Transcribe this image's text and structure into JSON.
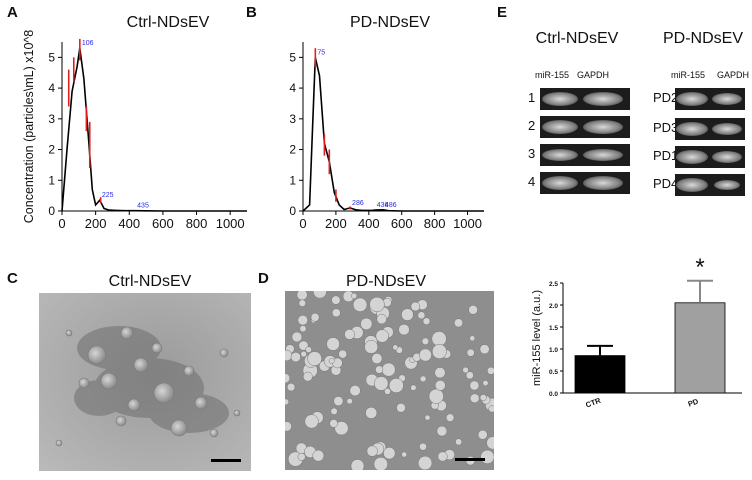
{
  "panels": {
    "A": {
      "letter": "A",
      "title": "Ctrl-NDsEV"
    },
    "B": {
      "letter": "B",
      "title": "PD-NDsEV"
    },
    "C": {
      "letter": "C",
      "title": "Ctrl-NDsEV"
    },
    "D": {
      "letter": "D",
      "title": "PD-NDsEV"
    },
    "E": {
      "letter": "E"
    }
  },
  "western": {
    "left": {
      "title": "Ctrl-NDsEV",
      "col_labels": [
        "miR-155",
        "GAPDH"
      ],
      "rows": [
        "1",
        "2",
        "3",
        "4"
      ]
    },
    "right": {
      "title": "PD-NDsEV",
      "col_labels": [
        "miR-155",
        "GAPDH"
      ],
      "rows": [
        "PD2",
        "PD3",
        "PD1",
        "PD4"
      ]
    }
  },
  "chart_data": [
    {
      "type": "line",
      "panel": "A",
      "ylabel": "Concentration (particles\\mL) x10^8",
      "xlim": [
        0,
        1100
      ],
      "ylim": [
        0,
        5.5
      ],
      "xticks": [
        0,
        200,
        400,
        600,
        800,
        1000
      ],
      "yticks": [
        0,
        1,
        2,
        3,
        4,
        5
      ],
      "x": [
        0,
        30,
        60,
        90,
        106,
        130,
        160,
        180,
        200,
        225,
        250,
        280,
        320,
        380,
        435,
        500,
        600,
        800,
        1000,
        1100
      ],
      "y": [
        0,
        2.0,
        3.9,
        4.7,
        5.3,
        4.3,
        2.2,
        0.7,
        0.2,
        0.35,
        0.08,
        0.03,
        0.02,
        0.01,
        0.01,
        0.005,
        0.0,
        0.0,
        0.0,
        0.0
      ],
      "peak_labels": [
        {
          "x": 106,
          "y": 5.3,
          "text": "106"
        },
        {
          "x": 225,
          "y": 0.35,
          "text": "225"
        },
        {
          "x": 435,
          "y": 0.01,
          "text": "435"
        }
      ],
      "error_bars": [
        {
          "x": 40,
          "lo": 3.4,
          "hi": 4.6
        },
        {
          "x": 70,
          "lo": 4.2,
          "hi": 5.0
        },
        {
          "x": 106,
          "lo": 4.9,
          "hi": 5.6
        },
        {
          "x": 145,
          "lo": 2.6,
          "hi": 3.4
        },
        {
          "x": 165,
          "lo": 1.4,
          "hi": 2.9
        },
        {
          "x": 230,
          "lo": 0.25,
          "hi": 0.45
        }
      ]
    },
    {
      "type": "line",
      "panel": "B",
      "xlim": [
        0,
        1100
      ],
      "ylim": [
        0,
        5.5
      ],
      "xticks": [
        0,
        200,
        400,
        600,
        800,
        1000
      ],
      "yticks": [
        0,
        1,
        2,
        3,
        4,
        5
      ],
      "x": [
        0,
        40,
        60,
        75,
        100,
        130,
        160,
        190,
        220,
        250,
        286,
        320,
        360,
        420,
        436,
        486,
        520,
        600,
        800,
        1000,
        1100
      ],
      "y": [
        0,
        0.2,
        3.0,
        5.0,
        4.4,
        2.2,
        1.6,
        0.6,
        0.2,
        0.05,
        0.1,
        0.04,
        0.02,
        0.02,
        0.03,
        0.04,
        0.01,
        0.0,
        0.0,
        0.0,
        0.0
      ],
      "peak_labels": [
        {
          "x": 75,
          "y": 5.0,
          "text": "75"
        },
        {
          "x": 286,
          "y": 0.1,
          "text": "286"
        },
        {
          "x": 436,
          "y": 0.03,
          "text": "436"
        },
        {
          "x": 486,
          "y": 0.04,
          "text": "486"
        }
      ],
      "error_bars": [
        {
          "x": 75,
          "lo": 4.7,
          "hi": 5.3
        },
        {
          "x": 130,
          "lo": 1.8,
          "hi": 2.5
        },
        {
          "x": 160,
          "lo": 1.2,
          "hi": 2.0
        },
        {
          "x": 200,
          "lo": 0.3,
          "hi": 0.7
        },
        {
          "x": 286,
          "lo": 0.05,
          "hi": 0.15
        }
      ]
    },
    {
      "type": "bar",
      "panel": "E",
      "categories": [
        "CTR",
        "PD"
      ],
      "values": [
        0.85,
        2.05
      ],
      "errors": [
        0.22,
        0.5
      ],
      "colors": [
        "#000000",
        "#a0a0a0"
      ],
      "ylabel": "miR-155 level (a.u.)",
      "ylim": [
        0,
        2.5
      ],
      "yticks": [
        "0.0",
        "0.5",
        "1.0",
        "1.5",
        "2.0",
        "2.5"
      ],
      "significance": "*"
    }
  ]
}
